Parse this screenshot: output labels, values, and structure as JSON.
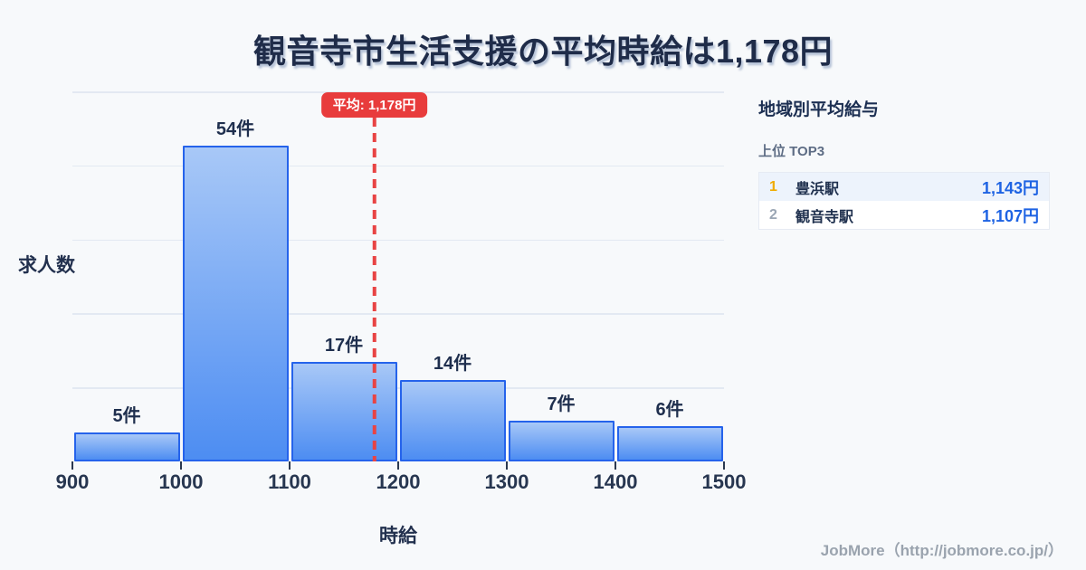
{
  "title": "観音寺市生活支援の平均時給は1,178円",
  "chart_data": {
    "type": "bar",
    "subtype": "histogram",
    "bin_edges": [
      900,
      1000,
      1100,
      1200,
      1300,
      1400,
      1500
    ],
    "categories": [
      "900-1000",
      "1000-1100",
      "1100-1200",
      "1200-1300",
      "1300-1400",
      "1400-1500"
    ],
    "values": [
      5,
      54,
      17,
      14,
      7,
      6
    ],
    "bar_labels": [
      "5件",
      "54件",
      "17件",
      "14件",
      "7件",
      "6件"
    ],
    "x_ticks": [
      "900",
      "1000",
      "1100",
      "1200",
      "1300",
      "1400",
      "1500"
    ],
    "xlabel": "時給",
    "ylabel": "求人数",
    "xlim": [
      900,
      1500
    ],
    "grid": true,
    "mean": {
      "value": 1178,
      "label": "平均: 1,178円"
    },
    "colors": {
      "bar_top": "#a8c8f7",
      "bar_bottom": "#4d8df2",
      "bar_border": "#2563eb",
      "mean_red": "#e83c3c"
    }
  },
  "sidebar": {
    "title": "地域別平均給与",
    "subtitle": "上位 TOP3",
    "rows": [
      {
        "rank": "1",
        "name": "豊浜駅",
        "value": "1,143円",
        "highlight": true,
        "rank_color": "#f0ab00"
      },
      {
        "rank": "2",
        "name": "観音寺駅",
        "value": "1,107円",
        "highlight": false,
        "rank_color": "#9ba6b4"
      }
    ],
    "value_color": "#1e63e3"
  },
  "footer": {
    "credit": "JobMore（http://jobmore.co.jp/）"
  }
}
